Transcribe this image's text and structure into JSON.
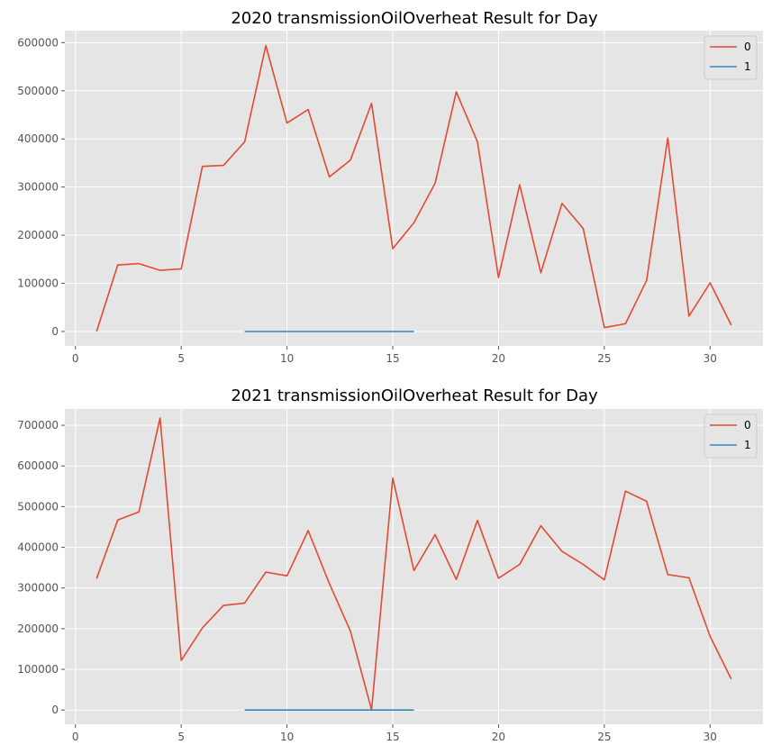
{
  "chart_data": [
    {
      "type": "line",
      "title": "2020 transmissionOilOverheat Result for Day",
      "xlim": [
        -0.5,
        32.5
      ],
      "ylim": [
        -30000,
        625000
      ],
      "x_ticks": [
        0,
        5,
        10,
        15,
        20,
        25,
        30
      ],
      "y_ticks": [
        0,
        100000,
        200000,
        300000,
        400000,
        500000,
        600000
      ],
      "grid": true,
      "legend_position": "top-right",
      "series": [
        {
          "name": "0",
          "color": "#e24a33",
          "x": [
            1,
            2,
            3,
            4,
            5,
            6,
            7,
            8,
            9,
            10,
            11,
            12,
            13,
            14,
            15,
            16,
            17,
            18,
            19,
            20,
            21,
            22,
            23,
            24,
            25,
            26,
            27,
            28,
            29,
            30,
            31
          ],
          "y": [
            0,
            138000,
            141000,
            127000,
            130000,
            343000,
            345000,
            394000,
            594000,
            433000,
            461000,
            321000,
            356000,
            474000,
            172000,
            226000,
            308000,
            498000,
            394000,
            112000,
            305000,
            122000,
            266000,
            214000,
            8000,
            16000,
            106000,
            402000,
            32000,
            101000,
            13000
          ]
        },
        {
          "name": "1",
          "color": "#348abd",
          "x": [
            8,
            9,
            10,
            11,
            12,
            13,
            14,
            15,
            16
          ],
          "y": [
            0,
            0,
            0,
            0,
            0,
            0,
            0,
            0,
            0
          ]
        }
      ]
    },
    {
      "type": "line",
      "title": "2021 transmissionOilOverheat Result for Day",
      "xlim": [
        -0.5,
        32.5
      ],
      "ylim": [
        -35000,
        740000
      ],
      "x_ticks": [
        0,
        5,
        10,
        15,
        20,
        25,
        30
      ],
      "y_ticks": [
        0,
        100000,
        200000,
        300000,
        400000,
        500000,
        600000,
        700000
      ],
      "grid": true,
      "legend_position": "top-right",
      "series": [
        {
          "name": "0",
          "color": "#e24a33",
          "x": [
            1,
            2,
            3,
            4,
            5,
            6,
            7,
            8,
            9,
            10,
            11,
            12,
            13,
            14,
            15,
            16,
            17,
            18,
            19,
            20,
            21,
            22,
            23,
            24,
            25,
            26,
            27,
            28,
            29,
            30,
            31
          ],
          "y": [
            323000,
            467000,
            487000,
            718000,
            122000,
            202000,
            257000,
            263000,
            339000,
            330000,
            441000,
            311000,
            194000,
            0,
            570000,
            343000,
            431000,
            321000,
            466000,
            324000,
            358000,
            453000,
            390000,
            358000,
            320000,
            538000,
            513000,
            333000,
            325000,
            181000,
            76000
          ]
        },
        {
          "name": "1",
          "color": "#348abd",
          "x": [
            8,
            9,
            10,
            11,
            12,
            13,
            14,
            15,
            16
          ],
          "y": [
            0,
            0,
            0,
            0,
            0,
            0,
            0,
            0,
            0
          ]
        }
      ]
    }
  ]
}
